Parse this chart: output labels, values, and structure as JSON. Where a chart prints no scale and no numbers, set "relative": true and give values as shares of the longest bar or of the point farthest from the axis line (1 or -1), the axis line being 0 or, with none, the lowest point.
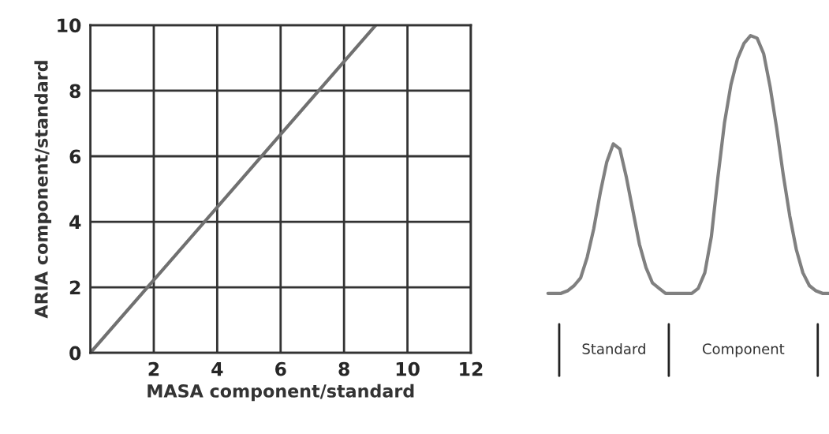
{
  "chart_data": [
    {
      "type": "line",
      "xlabel": "MASA component/standard",
      "ylabel": "ARIA component/standard",
      "x": [
        0,
        9
      ],
      "values": [
        0,
        10
      ],
      "color": "#707070",
      "xlim": [
        0,
        12
      ],
      "ylim": [
        0,
        10
      ],
      "xticks": [
        {
          "value": 0,
          "label": null
        },
        2,
        4,
        6,
        8,
        10,
        12
      ],
      "yticks": [
        0,
        2,
        4,
        6,
        8,
        10
      ],
      "grid": true
    },
    {
      "type": "line",
      "relative": true,
      "color": "#808080",
      "categories": [
        null,
        null,
        null,
        null,
        null,
        null,
        null,
        null,
        null,
        null,
        null,
        null,
        null,
        null,
        null,
        null,
        null,
        null,
        null,
        null,
        null,
        null,
        null,
        null,
        null,
        null,
        null,
        null,
        null,
        null,
        null,
        null,
        null,
        null,
        null,
        null,
        null,
        null,
        null,
        null,
        null,
        null,
        null,
        null
      ],
      "values": [
        0,
        0,
        0,
        0.01,
        0.03,
        0.06,
        0.14,
        0.25,
        0.39,
        0.51,
        0.58,
        0.56,
        0.45,
        0.32,
        0.19,
        0.1,
        0.04,
        0.02,
        0,
        0,
        0,
        0,
        0,
        0.02,
        0.08,
        0.22,
        0.45,
        0.66,
        0.81,
        0.91,
        0.97,
        1.0,
        0.99,
        0.93,
        0.8,
        0.64,
        0.46,
        0.3,
        0.17,
        0.08,
        0.03,
        0.01,
        0,
        0
      ],
      "annotations": [
        "Standard",
        "Component"
      ]
    }
  ]
}
